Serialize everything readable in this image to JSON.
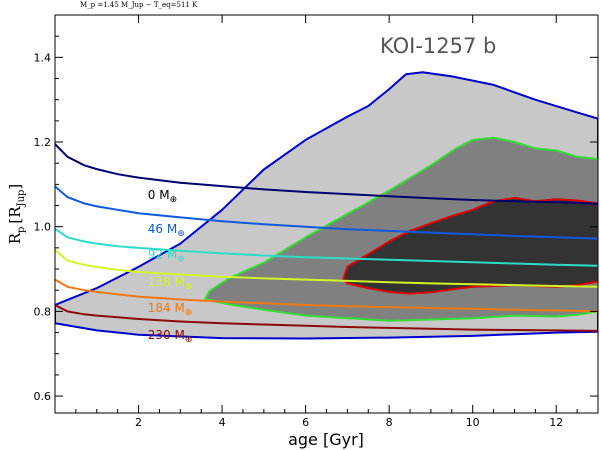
{
  "chart_data": {
    "type": "area",
    "title": "KOI-1257 b",
    "header": "M_p =1.45 M_Jup  −  T_eq=511 K",
    "xlabel": "age [Gyr]",
    "ylabel": "R_p [R_Jup]",
    "ylabel_main": "R",
    "ylabel_sub": "p",
    "ylabel_bracket_open": "[R",
    "ylabel_bracket_sub": "Jup",
    "ylabel_bracket_close": "]",
    "xlim": [
      0,
      13
    ],
    "ylim": [
      0.56,
      1.5
    ],
    "xticks": [
      2,
      4,
      6,
      8,
      10,
      12
    ],
    "yticks": [
      0.6,
      0.8,
      1.0,
      1.2,
      1.4
    ],
    "xtick_labels": [
      "2",
      "4",
      "6",
      "8",
      "10",
      "12"
    ],
    "ytick_labels": [
      "0.6",
      "0.8",
      "1.0",
      "1.2",
      "1.4"
    ],
    "regions": [
      {
        "name": "outer-contour",
        "fill": "#c8c8c8",
        "stroke": "#0000cc",
        "points": [
          [
            0,
            0.815
          ],
          [
            1.0,
            0.855
          ],
          [
            2.0,
            0.905
          ],
          [
            3.0,
            0.96
          ],
          [
            4.0,
            1.04
          ],
          [
            5.0,
            1.135
          ],
          [
            6.0,
            1.205
          ],
          [
            7.0,
            1.26
          ],
          [
            7.5,
            1.285
          ],
          [
            8.0,
            1.325
          ],
          [
            8.4,
            1.36
          ],
          [
            8.8,
            1.365
          ],
          [
            9.5,
            1.355
          ],
          [
            10.5,
            1.335
          ],
          [
            11.5,
            1.3
          ],
          [
            12.5,
            1.27
          ],
          [
            13.0,
            1.255
          ],
          [
            13.0,
            0.752
          ],
          [
            12.0,
            0.75
          ],
          [
            11.0,
            0.746
          ],
          [
            10.0,
            0.742
          ],
          [
            8.0,
            0.738
          ],
          [
            6.0,
            0.736
          ],
          [
            4.0,
            0.737
          ],
          [
            2.0,
            0.745
          ],
          [
            1.0,
            0.755
          ],
          [
            0,
            0.772
          ]
        ]
      },
      {
        "name": "middle-contour",
        "fill": "#808080",
        "stroke": "#33dd33",
        "points": [
          [
            3.6,
            0.83
          ],
          [
            3.7,
            0.848
          ],
          [
            4.2,
            0.88
          ],
          [
            5.0,
            0.915
          ],
          [
            6.0,
            0.975
          ],
          [
            7.0,
            1.03
          ],
          [
            8.0,
            1.085
          ],
          [
            9.0,
            1.145
          ],
          [
            9.6,
            1.185
          ],
          [
            10.0,
            1.205
          ],
          [
            10.5,
            1.21
          ],
          [
            11.0,
            1.2
          ],
          [
            11.5,
            1.185
          ],
          [
            12.0,
            1.18
          ],
          [
            12.5,
            1.165
          ],
          [
            13.0,
            1.16
          ],
          [
            13.0,
            0.8
          ],
          [
            12.5,
            0.792
          ],
          [
            12.0,
            0.788
          ],
          [
            11.0,
            0.79
          ],
          [
            10.0,
            0.784
          ],
          [
            8.0,
            0.778
          ],
          [
            6.0,
            0.79
          ],
          [
            5.0,
            0.804
          ],
          [
            4.2,
            0.816
          ],
          [
            3.8,
            0.824
          ]
        ]
      },
      {
        "name": "inner-contour",
        "fill": "#333333",
        "stroke": "#dd0000",
        "points": [
          [
            6.9,
            0.875
          ],
          [
            7.0,
            0.905
          ],
          [
            7.5,
            0.935
          ],
          [
            8.0,
            0.965
          ],
          [
            8.5,
            0.99
          ],
          [
            9.0,
            1.008
          ],
          [
            9.5,
            1.025
          ],
          [
            10.0,
            1.04
          ],
          [
            10.5,
            1.06
          ],
          [
            11.0,
            1.068
          ],
          [
            11.5,
            1.06
          ],
          [
            12.0,
            1.065
          ],
          [
            12.5,
            1.062
          ],
          [
            13.0,
            1.055
          ],
          [
            13.0,
            0.87
          ],
          [
            12.5,
            0.862
          ],
          [
            12.0,
            0.858
          ],
          [
            11.0,
            0.862
          ],
          [
            10.0,
            0.858
          ],
          [
            9.5,
            0.852
          ],
          [
            9.0,
            0.845
          ],
          [
            8.5,
            0.842
          ],
          [
            8.0,
            0.846
          ],
          [
            7.5,
            0.855
          ],
          [
            7.0,
            0.866
          ]
        ]
      }
    ],
    "series": [
      {
        "name": "0 M_⊕",
        "label": "0 M",
        "label_sub": "⊕",
        "color": "#00006e",
        "label_color": "#000000",
        "label_pos": [
          0.45,
          1.065
        ],
        "points": [
          [
            0,
            1.195
          ],
          [
            0.3,
            1.165
          ],
          [
            0.7,
            1.145
          ],
          [
            1.0,
            1.136
          ],
          [
            1.5,
            1.124
          ],
          [
            2,
            1.116
          ],
          [
            3,
            1.104
          ],
          [
            4,
            1.096
          ],
          [
            5,
            1.088
          ],
          [
            6,
            1.082
          ],
          [
            7,
            1.077
          ],
          [
            8,
            1.072
          ],
          [
            9,
            1.067
          ],
          [
            10,
            1.063
          ],
          [
            11,
            1.06
          ],
          [
            12,
            1.058
          ],
          [
            13,
            1.054
          ]
        ]
      },
      {
        "name": "46 M_⊕",
        "label": "46 M",
        "label_sub": "⊕",
        "color": "#0f5adc",
        "label_color": "#0f5adc",
        "label_pos": [
          0.45,
          0.985
        ],
        "points": [
          [
            0,
            1.095
          ],
          [
            0.3,
            1.07
          ],
          [
            0.7,
            1.055
          ],
          [
            1.0,
            1.048
          ],
          [
            1.5,
            1.04
          ],
          [
            2,
            1.032
          ],
          [
            3,
            1.022
          ],
          [
            4,
            1.013
          ],
          [
            5,
            1.006
          ],
          [
            6,
            1.0
          ],
          [
            7,
            0.994
          ],
          [
            8,
            0.99
          ],
          [
            9,
            0.986
          ],
          [
            10,
            0.982
          ],
          [
            11,
            0.978
          ],
          [
            12,
            0.975
          ],
          [
            13,
            0.972
          ]
        ]
      },
      {
        "name": "92 M_⊕",
        "label": "92 M",
        "label_sub": "⊕",
        "color": "#2ddcc8",
        "label_color": "#2ddcc8",
        "label_pos": [
          0.45,
          0.925
        ],
        "points": [
          [
            0,
            0.995
          ],
          [
            0.3,
            0.975
          ],
          [
            0.7,
            0.965
          ],
          [
            1.0,
            0.96
          ],
          [
            1.5,
            0.954
          ],
          [
            2,
            0.95
          ],
          [
            3,
            0.943
          ],
          [
            4,
            0.937
          ],
          [
            5,
            0.932
          ],
          [
            6,
            0.928
          ],
          [
            7,
            0.925
          ],
          [
            8,
            0.922
          ],
          [
            9,
            0.919
          ],
          [
            10,
            0.916
          ],
          [
            11,
            0.913
          ],
          [
            12,
            0.91
          ],
          [
            13,
            0.908
          ]
        ]
      },
      {
        "name": "138 M_⊕",
        "label": "138 M",
        "label_sub": "⊕",
        "color": "#d2f528",
        "label_color": "#d2f528",
        "label_pos": [
          0.45,
          0.86
        ],
        "points": [
          [
            0,
            0.945
          ],
          [
            0.3,
            0.92
          ],
          [
            0.7,
            0.91
          ],
          [
            1.0,
            0.905
          ],
          [
            1.5,
            0.898
          ],
          [
            2,
            0.893
          ],
          [
            3,
            0.887
          ],
          [
            4,
            0.882
          ],
          [
            5,
            0.878
          ],
          [
            6,
            0.875
          ],
          [
            7,
            0.872
          ],
          [
            8,
            0.869
          ],
          [
            9,
            0.866
          ],
          [
            10,
            0.864
          ],
          [
            11,
            0.862
          ],
          [
            12,
            0.86
          ],
          [
            13,
            0.858
          ]
        ]
      },
      {
        "name": "184 M_⊕",
        "label": "184 M",
        "label_sub": "⊕",
        "color": "#f07814",
        "label_color": "#f07814",
        "label_pos": [
          0.45,
          0.798
        ],
        "points": [
          [
            0,
            0.875
          ],
          [
            0.3,
            0.858
          ],
          [
            0.7,
            0.85
          ],
          [
            1.0,
            0.846
          ],
          [
            1.5,
            0.84
          ],
          [
            2,
            0.835
          ],
          [
            3,
            0.828
          ],
          [
            4,
            0.823
          ],
          [
            5,
            0.819
          ],
          [
            6,
            0.815
          ],
          [
            7,
            0.812
          ],
          [
            8,
            0.81
          ],
          [
            9,
            0.808
          ],
          [
            10,
            0.806
          ],
          [
            11,
            0.804
          ],
          [
            12,
            0.802
          ],
          [
            13,
            0.8
          ]
        ]
      },
      {
        "name": "230 M_⊕",
        "label": "230 M",
        "label_sub": "⊕",
        "color": "#8c0a0a",
        "label_color": "#8c0a0a",
        "label_pos": [
          0.45,
          0.735
        ],
        "points": [
          [
            0,
            0.815
          ],
          [
            0.3,
            0.8
          ],
          [
            0.7,
            0.793
          ],
          [
            1.0,
            0.79
          ],
          [
            1.5,
            0.786
          ],
          [
            2,
            0.782
          ],
          [
            3,
            0.776
          ],
          [
            4,
            0.772
          ],
          [
            5,
            0.769
          ],
          [
            6,
            0.766
          ],
          [
            7,
            0.763
          ],
          [
            8,
            0.761
          ],
          [
            9,
            0.759
          ],
          [
            10,
            0.757
          ],
          [
            11,
            0.756
          ],
          [
            12,
            0.755
          ],
          [
            13,
            0.754
          ]
        ]
      }
    ]
  }
}
